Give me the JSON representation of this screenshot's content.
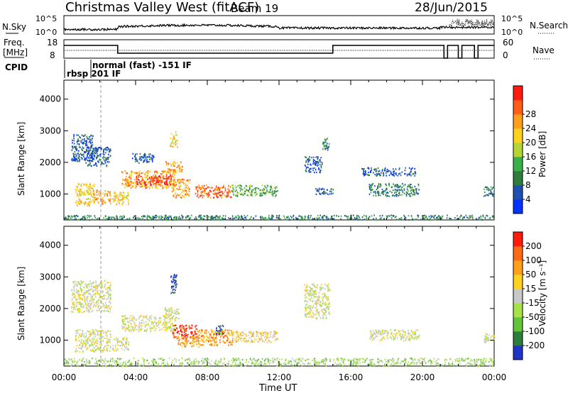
{
  "header": {
    "station": "Christmas Valley West (fitACF)",
    "beam": "Beam 19",
    "date": "28/Jun/2015"
  },
  "status_panel": {
    "nsky_label": "N.Sky",
    "nsky_ticks": [
      "10^5",
      "10^0"
    ],
    "nsearch_label": "N.Search",
    "nsearch_ticks": [
      "10^5",
      "10^0"
    ],
    "freq_label_top": "Freq.",
    "freq_label_unit": "[MHz]",
    "freq_ticks": [
      "18",
      "8"
    ],
    "nave_label": "Nave",
    "nave_ticks": [
      "60",
      "0"
    ],
    "cpid_label": "CPID",
    "cpid_entries": [
      {
        "start_hour": 0.0,
        "text": "rbsp 201 IF"
      },
      {
        "start_hour": 1.8,
        "text": "normal (fast) -151 IF"
      }
    ]
  },
  "chart_data": [
    {
      "type": "heatmap",
      "name": "power",
      "ylabel": "Slant Range [km]",
      "x_range_hours": [
        0,
        24
      ],
      "ylim": [
        180,
        4600
      ],
      "yticks": [
        1000,
        2000,
        3000,
        4000
      ],
      "colorbar": {
        "label": "Power [dB]",
        "ticks": [
          "4",
          "8",
          "12",
          "16",
          "20",
          "24",
          "28"
        ],
        "colors": [
          "#0033ff",
          "#1f4fb0",
          "#2e7d3c",
          "#3ab04a",
          "#b7d437",
          "#ffd21f",
          "#ff9f1a",
          "#ff5e14",
          "#ff1c0c"
        ]
      },
      "scatter_regions": [
        {
          "x0": 0.6,
          "x1": 1.7,
          "y0": 650,
          "y1": 1350,
          "level": 5
        },
        {
          "x0": 1.6,
          "x1": 2.6,
          "y0": 700,
          "y1": 1150,
          "level": 6
        },
        {
          "x0": 2.7,
          "x1": 3.6,
          "y0": 680,
          "y1": 1100,
          "level": 5
        },
        {
          "x0": 3.2,
          "x1": 6.2,
          "y0": 1200,
          "y1": 1750,
          "level": 6
        },
        {
          "x0": 4.0,
          "x1": 6.0,
          "y0": 1300,
          "y1": 1600,
          "level": 8
        },
        {
          "x0": 5.6,
          "x1": 6.6,
          "y0": 1700,
          "y1": 2050,
          "level": 6
        },
        {
          "x0": 6.0,
          "x1": 7.0,
          "y0": 900,
          "y1": 1500,
          "level": 6
        },
        {
          "x0": 7.3,
          "x1": 9.3,
          "y0": 900,
          "y1": 1300,
          "level": 7
        },
        {
          "x0": 9.3,
          "x1": 11.9,
          "y0": 950,
          "y1": 1300,
          "level": 3
        },
        {
          "x0": 17.0,
          "x1": 19.8,
          "y0": 950,
          "y1": 1350,
          "level": 2
        },
        {
          "x0": 0.4,
          "x1": 1.6,
          "y0": 2050,
          "y1": 2900,
          "level": 1
        },
        {
          "x0": 1.2,
          "x1": 2.6,
          "y0": 1900,
          "y1": 2500,
          "level": 1
        },
        {
          "x0": 3.8,
          "x1": 5.0,
          "y0": 2000,
          "y1": 2300,
          "level": 1
        },
        {
          "x0": 5.9,
          "x1": 6.3,
          "y0": 2500,
          "y1": 3000,
          "level": 5
        },
        {
          "x0": 13.4,
          "x1": 14.4,
          "y0": 1700,
          "y1": 2200,
          "level": 1
        },
        {
          "x0": 14.4,
          "x1": 14.8,
          "y0": 2400,
          "y1": 2800,
          "level": 2
        },
        {
          "x0": 16.6,
          "x1": 19.6,
          "y0": 1600,
          "y1": 1850,
          "level": 1
        },
        {
          "x0": 14.0,
          "x1": 15.0,
          "y0": 1000,
          "y1": 1200,
          "level": 1
        },
        {
          "x0": 23.4,
          "x1": 24.0,
          "y0": 950,
          "y1": 1250,
          "level": 2
        },
        {
          "x0": 0.0,
          "x1": 24.0,
          "y0": 200,
          "y1": 350,
          "level": 2
        }
      ]
    },
    {
      "type": "heatmap",
      "name": "velocity",
      "ylabel": "Slant Range [km]",
      "xlabel": "Time UT",
      "xticks": [
        "00:00",
        "04:00",
        "08:00",
        "12:00",
        "16:00",
        "20:00",
        "00:00"
      ],
      "x_range_hours": [
        0,
        24
      ],
      "ylim": [
        180,
        4600
      ],
      "yticks": [
        1000,
        2000,
        3000,
        4000
      ],
      "colorbar": {
        "label": "Velocity [m s⁻¹]",
        "ticks": [
          "200",
          "100",
          "50",
          "15",
          "-15",
          "-50",
          "-100",
          "-200"
        ],
        "colors": [
          "#2035c8",
          "#2e7d3c",
          "#63c43a",
          "#a8e24a",
          "#c8c8c8",
          "#ffd21f",
          "#ff9f1a",
          "#ff6a14",
          "#ff1c0c"
        ]
      },
      "scatter_regions": [
        {
          "x0": 0.6,
          "x1": 2.6,
          "y0": 650,
          "y1": 1350,
          "level": 4
        },
        {
          "x0": 2.7,
          "x1": 3.6,
          "y0": 680,
          "y1": 1100,
          "level": 4
        },
        {
          "x0": 3.2,
          "x1": 6.2,
          "y0": 1300,
          "y1": 1800,
          "level": 4
        },
        {
          "x0": 5.6,
          "x1": 6.4,
          "y0": 1700,
          "y1": 2050,
          "level": 4
        },
        {
          "x0": 6.0,
          "x1": 7.4,
          "y0": 1050,
          "y1": 1500,
          "level": 8
        },
        {
          "x0": 6.3,
          "x1": 7.6,
          "y0": 800,
          "y1": 1150,
          "level": 6
        },
        {
          "x0": 7.4,
          "x1": 9.4,
          "y0": 850,
          "y1": 1350,
          "level": 6
        },
        {
          "x0": 8.4,
          "x1": 8.9,
          "y0": 1200,
          "y1": 1500,
          "level": 1
        },
        {
          "x0": 9.3,
          "x1": 11.9,
          "y0": 950,
          "y1": 1300,
          "level": 5
        },
        {
          "x0": 5.9,
          "x1": 6.3,
          "y0": 2500,
          "y1": 3100,
          "level": 0
        },
        {
          "x0": 17.0,
          "x1": 19.8,
          "y0": 1000,
          "y1": 1350,
          "level": 4
        },
        {
          "x0": 0.4,
          "x1": 2.6,
          "y0": 1900,
          "y1": 2900,
          "level": 4
        },
        {
          "x0": 13.4,
          "x1": 14.8,
          "y0": 1700,
          "y1": 2800,
          "level": 4
        },
        {
          "x0": 23.4,
          "x1": 24.0,
          "y0": 950,
          "y1": 1250,
          "level": 4
        },
        {
          "x0": 0.0,
          "x1": 24.0,
          "y0": 200,
          "y1": 450,
          "level": 3
        }
      ]
    }
  ]
}
